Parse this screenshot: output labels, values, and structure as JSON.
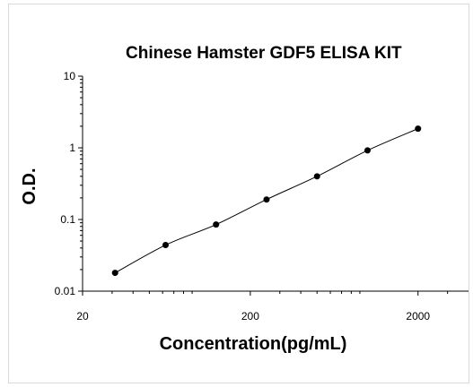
{
  "chart_data": {
    "type": "scatter",
    "title": "Chinese Hamster GDF5 ELISA KIT",
    "xlabel": "Concentration(pg/mL)",
    "ylabel": "O.D.",
    "x_scale": "log",
    "y_scale": "log",
    "xlim": [
      20,
      4000
    ],
    "ylim": [
      0.01,
      10
    ],
    "x_ticks": [
      {
        "value": 20,
        "label": "20"
      },
      {
        "value": 200,
        "label": "200"
      },
      {
        "value": 2000,
        "label": "2000"
      }
    ],
    "y_ticks": [
      {
        "value": 0.01,
        "label": "0.01"
      },
      {
        "value": 0.1,
        "label": "0.1"
      },
      {
        "value": 1,
        "label": "1"
      },
      {
        "value": 10,
        "label": "10"
      }
    ],
    "series": [
      {
        "x": [
          31.25,
          62.5,
          125,
          250,
          500,
          1000,
          2000
        ],
        "y": [
          0.018,
          0.044,
          0.085,
          0.19,
          0.4,
          0.92,
          1.85
        ],
        "fit_line": true
      }
    ],
    "grid": false,
    "legend": "none",
    "colors": {
      "points": "#000000",
      "line": "#000000",
      "axis": "#000000"
    }
  }
}
